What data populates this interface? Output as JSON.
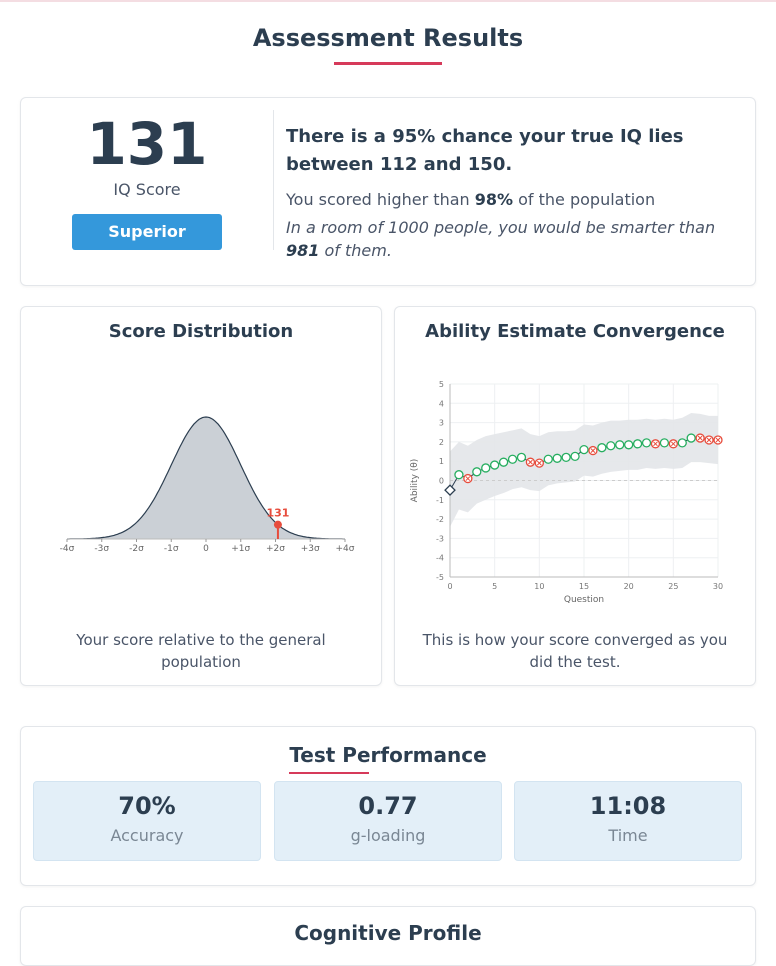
{
  "page": {
    "title": "Assessment Results",
    "accent": "#d63a5a"
  },
  "summary": {
    "score": "131",
    "score_label": "IQ Score",
    "category": "Superior",
    "ci_text": "There is a 95% chance your true IQ lies between 112 and 150.",
    "percentile_pre": "You scored higher than ",
    "percentile": "98%",
    "percentile_post": " of the population",
    "room_pre": "In a room of 1000 people, you would be smarter than ",
    "room_count": "981",
    "room_post": " of them."
  },
  "distribution": {
    "title": "Score Distribution",
    "caption": "Your score relative to the general population",
    "marker_label": "131"
  },
  "convergence": {
    "title": "Ability Estimate Convergence",
    "caption": "This is how your score converged as you did the test."
  },
  "performance": {
    "title": "Test Performance",
    "stats": [
      {
        "value": "70%",
        "label": "Accuracy"
      },
      {
        "value": "0.77",
        "label": "g-loading"
      },
      {
        "value": "11:08",
        "label": "Time"
      }
    ]
  },
  "next_section": {
    "title": "Cognitive Profile"
  },
  "chart_data": [
    {
      "type": "area",
      "title": "Score Distribution",
      "x_ticks": [
        "-4σ",
        "-3σ",
        "-2σ",
        "-1σ",
        "0",
        "+1σ",
        "+2σ",
        "+3σ",
        "+4σ"
      ],
      "xlim": [
        -4,
        4
      ],
      "distribution": "normal",
      "marker": {
        "z": 2.07,
        "label": "131"
      },
      "colors": {
        "fill": "#cbd0d6",
        "line": "#2c3e50",
        "marker": "#e74c3c"
      }
    },
    {
      "type": "line",
      "title": "Ability Estimate Convergence",
      "xlabel": "Question",
      "ylabel": "Ability (θ)",
      "xlim": [
        0,
        30
      ],
      "ylim": [
        -5,
        5
      ],
      "x_ticks": [
        "0",
        "5",
        "10",
        "15",
        "20",
        "25",
        "30"
      ],
      "y_ticks": [
        "5",
        "4",
        "3",
        "2",
        "1",
        "0",
        "-1",
        "-2",
        "-3",
        "-4",
        "-5"
      ],
      "grid": true,
      "theta": [
        -0.5,
        0.3,
        0.1,
        0.45,
        0.65,
        0.8,
        0.95,
        1.1,
        1.2,
        0.95,
        0.9,
        1.1,
        1.15,
        1.2,
        1.25,
        1.6,
        1.55,
        1.7,
        1.8,
        1.85,
        1.85,
        1.9,
        1.95,
        1.9,
        1.95,
        1.9,
        1.95,
        2.2,
        2.2,
        2.1,
        2.1
      ],
      "correct": [
        null,
        1,
        0,
        1,
        1,
        1,
        1,
        1,
        1,
        0,
        0,
        1,
        1,
        1,
        1,
        1,
        0,
        1,
        1,
        1,
        1,
        1,
        1,
        0,
        1,
        0,
        1,
        1,
        0,
        0,
        0
      ],
      "upper": [
        1.5,
        2.0,
        1.8,
        2.1,
        2.3,
        2.4,
        2.5,
        2.6,
        2.7,
        2.4,
        2.3,
        2.5,
        2.55,
        2.55,
        2.6,
        2.9,
        2.85,
        3.0,
        3.1,
        3.1,
        3.15,
        3.15,
        3.2,
        3.15,
        3.2,
        3.15,
        3.25,
        3.5,
        3.45,
        3.35,
        3.35
      ],
      "lower": [
        -2.4,
        -1.5,
        -1.65,
        -1.2,
        -1.0,
        -0.8,
        -0.65,
        -0.45,
        -0.35,
        -0.5,
        -0.55,
        -0.25,
        -0.15,
        -0.1,
        -0.05,
        0.25,
        0.2,
        0.35,
        0.45,
        0.5,
        0.55,
        0.55,
        0.65,
        0.6,
        0.65,
        0.6,
        0.65,
        0.95,
        0.95,
        0.9,
        0.85
      ],
      "colors": {
        "correct": "#27ae60",
        "wrong": "#e74c3c",
        "band": "#e3e6e9"
      }
    }
  ]
}
